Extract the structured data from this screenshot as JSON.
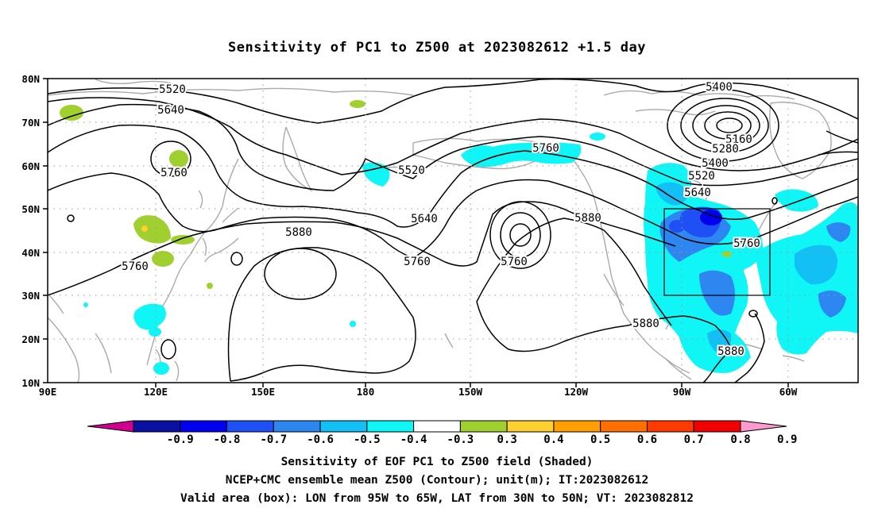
{
  "title": "Sensitivity of PC1 to Z500 at 2023082612 +1.5 day",
  "lat_labels": [
    "80N",
    "70N",
    "60N",
    "50N",
    "40N",
    "30N",
    "20N",
    "10N"
  ],
  "lon_labels": [
    "90E",
    "120E",
    "150E",
    "180",
    "150W",
    "120W",
    "90W",
    "60W"
  ],
  "contour_labels": [
    {
      "text": "5520"
    },
    {
      "text": "5640"
    },
    {
      "text": "5760"
    },
    {
      "text": "5760"
    },
    {
      "text": "5880"
    },
    {
      "text": "5520"
    },
    {
      "text": "5640"
    },
    {
      "text": "5760"
    },
    {
      "text": "5760"
    },
    {
      "text": "5760"
    },
    {
      "text": "5880"
    },
    {
      "text": "5400"
    },
    {
      "text": "5160"
    },
    {
      "text": "5280"
    },
    {
      "text": "5400"
    },
    {
      "text": "5520"
    },
    {
      "text": "5640"
    },
    {
      "text": "5760"
    },
    {
      "text": "5880"
    },
    {
      "text": "5880"
    }
  ],
  "colorbar": {
    "labels": [
      "-0.9",
      "-0.8",
      "-0.7",
      "-0.6",
      "-0.5",
      "-0.4",
      "-0.3",
      "0.3",
      "0.4",
      "0.5",
      "0.6",
      "0.7",
      "0.8",
      "0.9"
    ],
    "colors": [
      "#d00090",
      "#0a10a0",
      "#0000f0",
      "#1e50f5",
      "#2e86f0",
      "#12c0f5",
      "#10f5f5",
      "#ffffff",
      "#a0d030",
      "#ffd030",
      "#ffa000",
      "#ff7000",
      "#ff3a00",
      "#f00000",
      "#ff9ad0"
    ]
  },
  "captions": [
    "Sensitivity of EOF PC1 to Z500 field (Shaded)",
    "NCEP+CMC ensemble mean Z500 (Contour); unit(m); IT:2023082612",
    "Valid area (box): LON from 95W to 65W, LAT from 30N to 50N; VT: 2023082812"
  ]
}
